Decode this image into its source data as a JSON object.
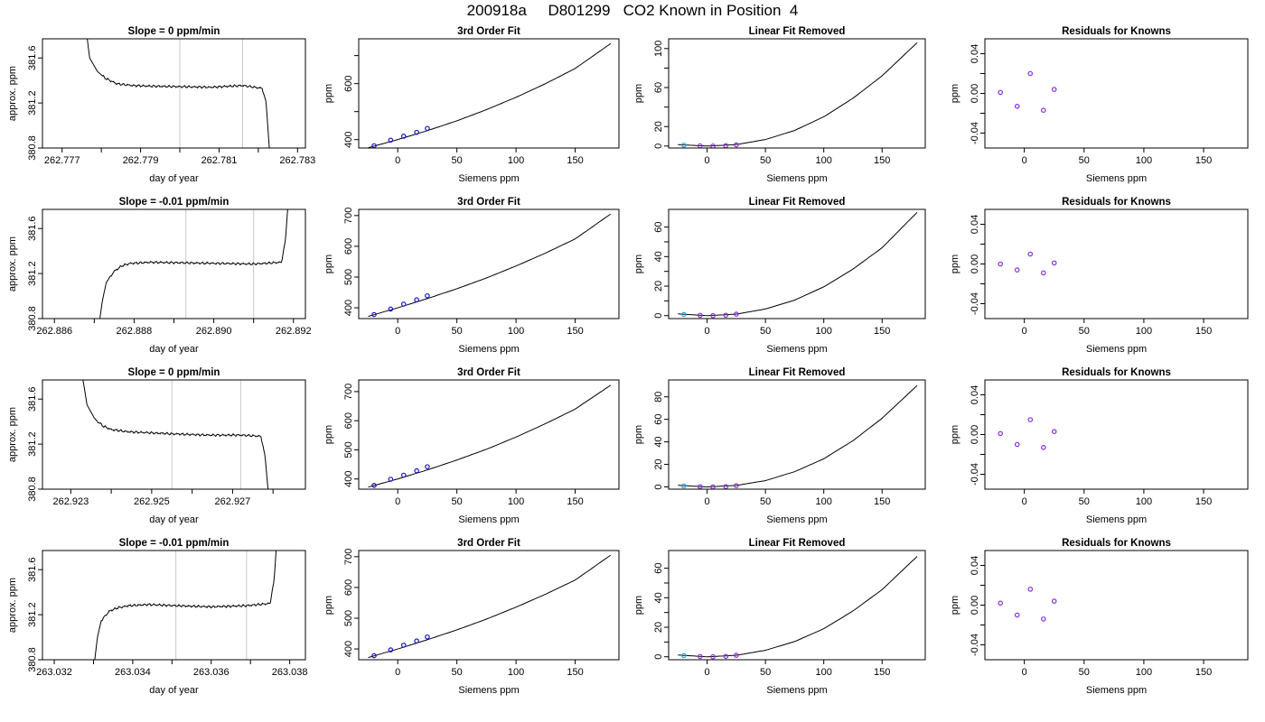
{
  "figure": {
    "title": "200918a     D801299   CO2 Known in Position  4"
  },
  "chart_data": [
    {
      "panel": "r1-trace",
      "type": "line",
      "title": "Slope =  0  ppm/min",
      "xlabel": "day of year",
      "ylabel": "approx. ppm",
      "xlim": [
        262.7765,
        262.7832
      ],
      "ylim": [
        380.8,
        381.77
      ],
      "xticks": [
        262.777,
        262.778,
        262.779,
        262.78,
        262.781,
        262.782,
        262.783
      ],
      "xtick_labels": [
        "262.777",
        "",
        "262.779",
        "",
        "262.781",
        "",
        "262.783"
      ],
      "yticks": [
        380.8,
        381.2,
        381.6
      ],
      "ytick_labels": [
        "380.8",
        "381.2",
        "381.6"
      ],
      "vlines": [
        262.78,
        262.7816
      ],
      "x": [
        262.7775,
        262.7777,
        262.7779,
        262.7781,
        262.7784,
        262.7788,
        262.7792,
        262.78,
        262.7808,
        262.7816,
        262.7821,
        262.7822,
        262.7823
      ],
      "y": [
        382.2,
        381.6,
        381.48,
        381.42,
        381.37,
        381.355,
        381.35,
        381.345,
        381.34,
        381.355,
        381.33,
        381.2,
        380.7
      ]
    },
    {
      "panel": "r1-fit",
      "type": "line",
      "title": "3rd Order Fit",
      "xlabel": "Siemens ppm",
      "ylabel": "ppm",
      "xlim": [
        -33,
        187
      ],
      "ylim": [
        370,
        760
      ],
      "xticks": [
        0,
        50,
        100,
        150
      ],
      "xtick_labels": [
        "0",
        "50",
        "100",
        "150"
      ],
      "yticks": [
        400,
        500,
        600,
        700
      ],
      "ytick_labels": [
        "400",
        "",
        "600",
        ""
      ],
      "curve": {
        "x": [
          -25,
          0,
          25,
          50,
          75,
          100,
          125,
          150,
          180
        ],
        "y": [
          371,
          400,
          432,
          467,
          507,
          551,
          600,
          654,
          743
        ]
      },
      "points": {
        "x": [
          -20,
          -6,
          5,
          16,
          25
        ],
        "y": [
          378,
          398,
          412,
          426,
          440
        ]
      }
    },
    {
      "panel": "r1-linear",
      "type": "line",
      "title": "Linear Fit Removed",
      "xlabel": "Siemens ppm",
      "ylabel": "ppm",
      "xlim": [
        -33,
        187
      ],
      "ylim": [
        -2,
        110
      ],
      "xticks": [
        0,
        50,
        100,
        150
      ],
      "xtick_labels": [
        "0",
        "50",
        "100",
        "150"
      ],
      "yticks": [
        0,
        20,
        40,
        60,
        80,
        100
      ],
      "ytick_labels": [
        "0",
        "20",
        "",
        "60",
        "",
        "100"
      ],
      "curve": {
        "x": [
          -25,
          0,
          25,
          50,
          75,
          100,
          125,
          150,
          180
        ],
        "y": [
          1.5,
          0,
          1.5,
          6.7,
          16,
          30,
          49,
          72,
          106
        ]
      },
      "points": {
        "x": [
          -20,
          -6,
          5,
          16,
          25
        ],
        "y": [
          1.0,
          0.2,
          0.0,
          0.4,
          1.2
        ]
      }
    },
    {
      "panel": "r1-resid",
      "type": "scatter",
      "title": "Residuals for Knowns",
      "xlabel": "Siemens ppm",
      "ylabel": "ppm",
      "xlim": [
        -33,
        187
      ],
      "ylim": [
        -0.055,
        0.055
      ],
      "xticks": [
        0,
        50,
        100,
        150
      ],
      "xtick_labels": [
        "0",
        "50",
        "100",
        "150"
      ],
      "yticks": [
        -0.04,
        -0.02,
        0.0,
        0.02,
        0.04
      ],
      "ytick_labels": [
        "-0.04",
        "",
        "0.00",
        "",
        "0.04"
      ],
      "points": {
        "x": [
          -20,
          -6,
          5,
          16,
          25
        ],
        "y": [
          0.001,
          -0.013,
          0.02,
          -0.017,
          0.004
        ]
      }
    },
    {
      "panel": "r2-trace",
      "type": "line",
      "title": "Slope =  -0.01  ppm/min",
      "xlabel": "day of year",
      "ylabel": "approx. ppm",
      "xlim": [
        262.8857,
        262.8923
      ],
      "ylim": [
        380.8,
        381.77
      ],
      "xticks": [
        262.886,
        262.887,
        262.888,
        262.889,
        262.89,
        262.891,
        262.892
      ],
      "xtick_labels": [
        "262.886",
        "",
        "262.888",
        "",
        "262.890",
        "",
        "262.892"
      ],
      "yticks": [
        380.8,
        381.2,
        381.6
      ],
      "ytick_labels": [
        "380.8",
        "381.2",
        "381.6"
      ],
      "vlines": [
        262.8893,
        262.891
      ],
      "x": [
        262.8871,
        262.8872,
        262.8873,
        262.8875,
        262.8877,
        262.8879,
        262.8884,
        262.8893,
        262.8902,
        262.891,
        262.8917,
        262.8918,
        262.8919
      ],
      "y": [
        380.7,
        380.95,
        381.12,
        381.22,
        381.27,
        381.29,
        381.3,
        381.295,
        381.29,
        381.285,
        381.3,
        381.5,
        382.0
      ]
    },
    {
      "panel": "r2-fit",
      "type": "line",
      "title": "3rd Order Fit",
      "xlabel": "Siemens ppm",
      "ylabel": "ppm",
      "xlim": [
        -33,
        187
      ],
      "ylim": [
        365,
        720
      ],
      "xticks": [
        0,
        50,
        100,
        150
      ],
      "xtick_labels": [
        "0",
        "50",
        "100",
        "150"
      ],
      "yticks": [
        400,
        500,
        600,
        700
      ],
      "ytick_labels": [
        "400",
        "500",
        "600",
        "700"
      ],
      "curve": {
        "x": [
          -25,
          0,
          25,
          50,
          75,
          100,
          125,
          150,
          180
        ],
        "y": [
          372,
          400,
          430,
          462,
          497,
          536,
          578,
          624,
          705
        ]
      },
      "points": {
        "x": [
          -20,
          -6,
          5,
          16,
          25
        ],
        "y": [
          378,
          396,
          412,
          426,
          439
        ]
      }
    },
    {
      "panel": "r2-linear",
      "type": "line",
      "title": "Linear Fit Removed",
      "xlabel": "Siemens ppm",
      "ylabel": "ppm",
      "xlim": [
        -33,
        187
      ],
      "ylim": [
        -2,
        72
      ],
      "xticks": [
        0,
        50,
        100,
        150
      ],
      "xtick_labels": [
        "0",
        "50",
        "100",
        "150"
      ],
      "yticks": [
        0,
        10,
        20,
        30,
        40,
        50,
        60
      ],
      "ytick_labels": [
        "0",
        "",
        "20",
        "",
        "40",
        "",
        "60"
      ],
      "curve": {
        "x": [
          -25,
          0,
          25,
          50,
          75,
          100,
          125,
          150,
          180
        ],
        "y": [
          1.2,
          0,
          1.0,
          4.5,
          10.5,
          19.5,
          31.5,
          46,
          70
        ]
      },
      "points": {
        "x": [
          -20,
          -6,
          5,
          16,
          25
        ],
        "y": [
          0.8,
          0.2,
          0.0,
          0.3,
          1.0
        ]
      }
    },
    {
      "panel": "r2-resid",
      "type": "scatter",
      "title": "Residuals for Knowns",
      "xlabel": "Siemens ppm",
      "ylabel": "ppm",
      "xlim": [
        -33,
        187
      ],
      "ylim": [
        -0.055,
        0.055
      ],
      "xticks": [
        0,
        50,
        100,
        150
      ],
      "xtick_labels": [
        "0",
        "50",
        "100",
        "150"
      ],
      "yticks": [
        -0.04,
        -0.02,
        0.0,
        0.02,
        0.04
      ],
      "ytick_labels": [
        "-0.04",
        "",
        "0.00",
        "",
        "0.04"
      ],
      "points": {
        "x": [
          -20,
          -6,
          5,
          16,
          25
        ],
        "y": [
          0.0,
          -0.006,
          0.01,
          -0.009,
          0.001
        ]
      }
    },
    {
      "panel": "r3-trace",
      "type": "line",
      "title": "Slope =  0  ppm/min",
      "xlabel": "day of year",
      "ylabel": "approx. ppm",
      "xlim": [
        262.9223,
        262.9288
      ],
      "ylim": [
        380.8,
        381.77
      ],
      "xticks": [
        262.923,
        262.924,
        262.925,
        262.926,
        262.927,
        262.928
      ],
      "xtick_labels": [
        "262.923",
        "",
        "262.925",
        "",
        "262.927",
        ""
      ],
      "yticks": [
        380.8,
        381.2,
        381.6
      ],
      "ytick_labels": [
        "380.8",
        "381.2",
        "381.6"
      ],
      "vlines": [
        262.9255,
        262.9272
      ],
      "x": [
        262.9232,
        262.9234,
        262.9236,
        262.9238,
        262.924,
        262.9244,
        262.925,
        262.9256,
        262.9264,
        262.9272,
        262.9277,
        262.9278,
        262.9279
      ],
      "y": [
        382.0,
        381.55,
        381.42,
        381.36,
        381.33,
        381.31,
        381.3,
        381.29,
        381.28,
        381.28,
        381.27,
        381.1,
        380.7
      ]
    },
    {
      "panel": "r3-fit",
      "type": "line",
      "title": "3rd Order Fit",
      "xlabel": "Siemens ppm",
      "ylabel": "ppm",
      "xlim": [
        -33,
        187
      ],
      "ylim": [
        365,
        740
      ],
      "xticks": [
        0,
        50,
        100,
        150
      ],
      "xtick_labels": [
        "0",
        "50",
        "100",
        "150"
      ],
      "yticks": [
        400,
        500,
        600,
        700
      ],
      "ytick_labels": [
        "400",
        "500",
        "600",
        "700"
      ],
      "curve": {
        "x": [
          -25,
          0,
          25,
          50,
          75,
          100,
          125,
          150,
          180
        ],
        "y": [
          372,
          400,
          431,
          465,
          502,
          544,
          590,
          640,
          722
        ]
      },
      "points": {
        "x": [
          -20,
          -6,
          5,
          16,
          25
        ],
        "y": [
          378,
          399,
          413,
          428,
          442
        ]
      }
    },
    {
      "panel": "r3-linear",
      "type": "line",
      "title": "Linear Fit Removed",
      "xlabel": "Siemens ppm",
      "ylabel": "ppm",
      "xlim": [
        -33,
        187
      ],
      "ylim": [
        -2,
        95
      ],
      "xticks": [
        0,
        50,
        100,
        150
      ],
      "xtick_labels": [
        "0",
        "50",
        "100",
        "150"
      ],
      "yticks": [
        0,
        20,
        40,
        60,
        80
      ],
      "ytick_labels": [
        "0",
        "20",
        "40",
        "60",
        "80"
      ],
      "curve": {
        "x": [
          -25,
          0,
          25,
          50,
          75,
          100,
          125,
          150,
          180
        ],
        "y": [
          1.4,
          0,
          1.3,
          5.6,
          13.5,
          25,
          41,
          61,
          90
        ]
      },
      "points": {
        "x": [
          -20,
          -6,
          5,
          16,
          25
        ],
        "y": [
          0.9,
          0.2,
          0.0,
          0.3,
          1.1
        ]
      }
    },
    {
      "panel": "r3-resid",
      "type": "scatter",
      "title": "Residuals for Knowns",
      "xlabel": "Siemens ppm",
      "ylabel": "ppm",
      "xlim": [
        -33,
        187
      ],
      "ylim": [
        -0.055,
        0.055
      ],
      "xticks": [
        0,
        50,
        100,
        150
      ],
      "xtick_labels": [
        "0",
        "50",
        "100",
        "150"
      ],
      "yticks": [
        -0.04,
        -0.02,
        0.0,
        0.02,
        0.04
      ],
      "ytick_labels": [
        "-0.04",
        "",
        "0.00",
        "",
        "0.04"
      ],
      "points": {
        "x": [
          -20,
          -6,
          5,
          16,
          25
        ],
        "y": [
          0.001,
          -0.01,
          0.015,
          -0.013,
          0.003
        ]
      }
    },
    {
      "panel": "r4-trace",
      "type": "line",
      "title": "Slope =  -0.01  ppm/min",
      "xlabel": "day of year",
      "ylabel": "approx. ppm",
      "xlim": [
        263.0317,
        263.0384
      ],
      "ylim": [
        380.8,
        381.77
      ],
      "xticks": [
        263.032,
        263.033,
        263.034,
        263.035,
        263.036,
        263.037,
        263.038
      ],
      "xtick_labels": [
        "263.032",
        "",
        "263.034",
        "",
        "263.036",
        "",
        "263.038"
      ],
      "yticks": [
        380.8,
        381.2,
        381.6
      ],
      "ytick_labels": [
        "380.8",
        "381.2",
        "381.6"
      ],
      "vlines": [
        263.0351,
        263.0369
      ],
      "x": [
        263.033,
        263.0331,
        263.0332,
        263.0334,
        263.0336,
        263.0339,
        263.0344,
        263.0351,
        263.036,
        263.0369,
        263.0375,
        263.0376,
        263.0377
      ],
      "y": [
        380.7,
        381.0,
        381.15,
        381.23,
        381.26,
        381.28,
        381.29,
        381.28,
        381.27,
        381.28,
        381.3,
        381.5,
        382.0
      ]
    },
    {
      "panel": "r4-fit",
      "type": "line",
      "title": "3rd Order Fit",
      "xlabel": "Siemens ppm",
      "ylabel": "ppm",
      "xlim": [
        -33,
        187
      ],
      "ylim": [
        365,
        720
      ],
      "xticks": [
        0,
        50,
        100,
        150
      ],
      "xtick_labels": [
        "0",
        "50",
        "100",
        "150"
      ],
      "yticks": [
        400,
        500,
        600,
        700
      ],
      "ytick_labels": [
        "400",
        "500",
        "600",
        "700"
      ],
      "curve": {
        "x": [
          -25,
          0,
          25,
          50,
          75,
          100,
          125,
          150,
          180
        ],
        "y": [
          372,
          400,
          430,
          462,
          497,
          536,
          578,
          624,
          705
        ]
      },
      "points": {
        "x": [
          -20,
          -6,
          5,
          16,
          25
        ],
        "y": [
          378,
          397,
          412,
          426,
          439
        ]
      }
    },
    {
      "panel": "r4-linear",
      "type": "line",
      "title": "Linear Fit Removed",
      "xlabel": "Siemens ppm",
      "ylabel": "ppm",
      "xlim": [
        -33,
        187
      ],
      "ylim": [
        -2,
        72
      ],
      "xticks": [
        0,
        50,
        100,
        150
      ],
      "xtick_labels": [
        "0",
        "50",
        "100",
        "150"
      ],
      "yticks": [
        0,
        10,
        20,
        30,
        40,
        50,
        60
      ],
      "ytick_labels": [
        "0",
        "",
        "20",
        "",
        "40",
        "",
        "60"
      ],
      "curve": {
        "x": [
          -25,
          0,
          25,
          50,
          75,
          100,
          125,
          150,
          180
        ],
        "y": [
          1.2,
          0,
          1.0,
          4.4,
          10.3,
          19,
          31,
          45.5,
          68
        ]
      },
      "points": {
        "x": [
          -20,
          -6,
          5,
          16,
          25
        ],
        "y": [
          0.8,
          0.2,
          0.0,
          0.3,
          1.0
        ]
      }
    },
    {
      "panel": "r4-resid",
      "type": "scatter",
      "title": "Residuals for Knowns",
      "xlabel": "Siemens ppm",
      "ylabel": "ppm",
      "xlim": [
        -33,
        187
      ],
      "ylim": [
        -0.055,
        0.055
      ],
      "xticks": [
        0,
        50,
        100,
        150
      ],
      "xtick_labels": [
        "0",
        "50",
        "100",
        "150"
      ],
      "yticks": [
        -0.04,
        -0.02,
        0.0,
        0.02,
        0.04
      ],
      "ytick_labels": [
        "-0.04",
        "",
        "0.00",
        "",
        "0.04"
      ],
      "points": {
        "x": [
          -20,
          -6,
          5,
          16,
          25
        ],
        "y": [
          0.002,
          -0.01,
          0.016,
          -0.014,
          0.004
        ]
      }
    }
  ],
  "style": {
    "axis_color": "#000000",
    "line_color": "#000000",
    "vline_color": "#c8c8c8",
    "fit_point_color": "#1515cc",
    "resid_point_color": "#8a2be2",
    "first_point_color": "#2aa3d6"
  }
}
